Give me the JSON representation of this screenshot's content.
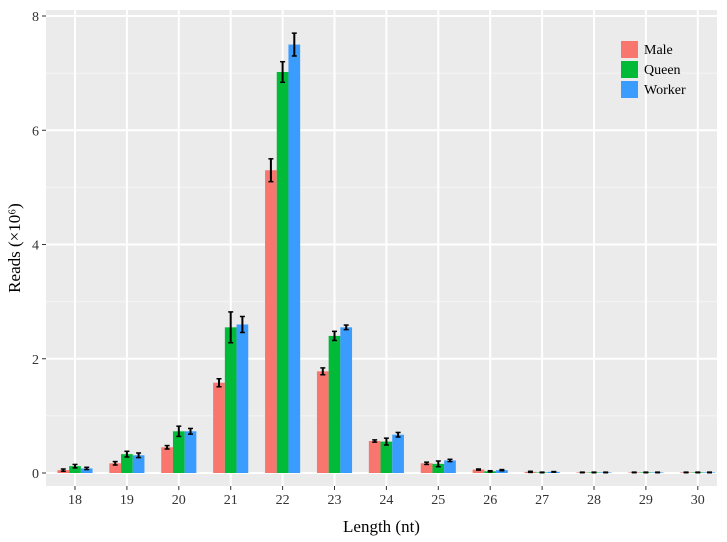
{
  "chart_data": {
    "type": "bar",
    "xlabel": "Length (nt)",
    "ylabel": "Reads (×10⁶)",
    "ylim": [
      0,
      8
    ],
    "yticks": [
      0,
      2,
      4,
      6,
      8
    ],
    "grid": true,
    "legend_position": "top-right",
    "categories": [
      "18",
      "19",
      "20",
      "21",
      "22",
      "23",
      "24",
      "25",
      "26",
      "27",
      "28",
      "29",
      "30"
    ],
    "series": [
      {
        "name": "Male",
        "color": "#F8766D",
        "values": [
          0.05,
          0.17,
          0.45,
          1.58,
          5.3,
          1.78,
          0.56,
          0.17,
          0.06,
          0.02,
          0.01,
          0.01,
          0.01
        ],
        "errors": [
          0.02,
          0.03,
          0.03,
          0.07,
          0.2,
          0.06,
          0.02,
          0.02,
          0.01,
          0.01,
          0.005,
          0.005,
          0.005
        ]
      },
      {
        "name": "Queen",
        "color": "#00BA38",
        "values": [
          0.12,
          0.33,
          0.73,
          2.55,
          7.02,
          2.4,
          0.55,
          0.16,
          0.03,
          0.01,
          0.01,
          0.01,
          0.01
        ],
        "errors": [
          0.03,
          0.05,
          0.09,
          0.27,
          0.18,
          0.08,
          0.06,
          0.05,
          0.01,
          0.005,
          0.005,
          0.005,
          0.005
        ]
      },
      {
        "name": "Worker",
        "color": "#3B9CFF",
        "values": [
          0.08,
          0.31,
          0.73,
          2.6,
          7.5,
          2.55,
          0.67,
          0.22,
          0.05,
          0.02,
          0.01,
          0.01,
          0.01
        ],
        "errors": [
          0.02,
          0.04,
          0.05,
          0.14,
          0.2,
          0.04,
          0.04,
          0.02,
          0.01,
          0.005,
          0.005,
          0.005,
          0.005
        ]
      }
    ]
  }
}
